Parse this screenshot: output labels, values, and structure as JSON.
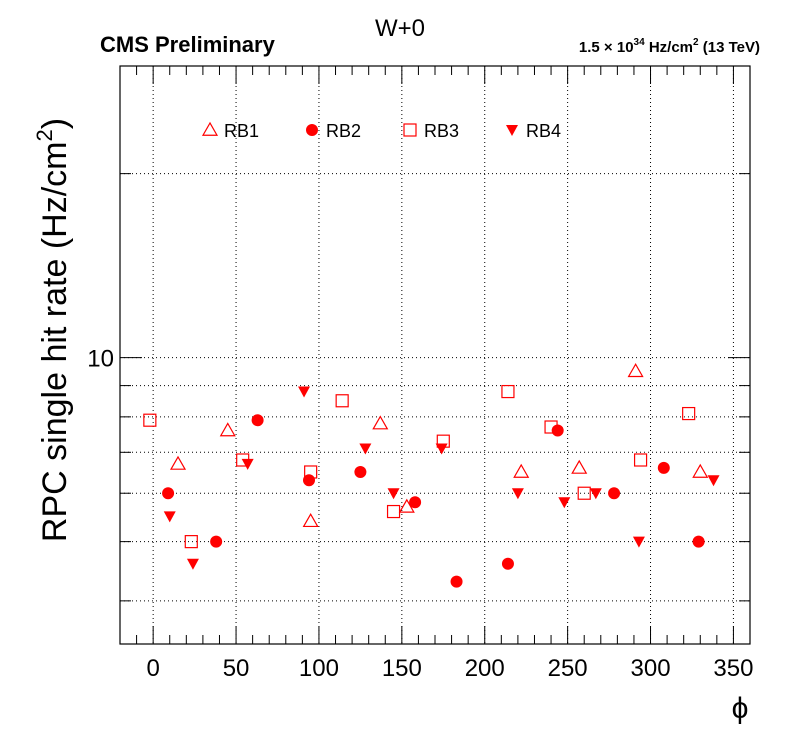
{
  "header": {
    "title": "W+0",
    "experiment": "CMS Preliminary",
    "lumi_main": "1.5 × 10",
    "lumi_exp": "34",
    "lumi_unit": " Hz/cm",
    "lumi_unit_exp": "2",
    "lumi_energy": " (13 TeV)"
  },
  "colors": {
    "marker": "#ff0000",
    "axis": "#000000",
    "grid": "#000000"
  },
  "chart_data": {
    "type": "scatter",
    "xlabel": "ϕ",
    "ylabel": "RPC single hit rate (Hz/cm",
    "ylabel_exp": "2",
    "ylabel_close": ")",
    "xlim": [
      -20,
      360
    ],
    "ylim": [
      3.4,
      30
    ],
    "yscale": "log",
    "grid": true,
    "legend_position": "top",
    "x_ticks": [
      0,
      50,
      100,
      150,
      200,
      250,
      300,
      350
    ],
    "x_tick_labels": [
      "0",
      "50",
      "100",
      "150",
      "200",
      "250",
      "300",
      "350"
    ],
    "y_ticks": [
      10
    ],
    "y_tick_labels": [
      "10"
    ],
    "series": [
      {
        "name": "RB1",
        "marker": "triangle-up-open",
        "x": [
          15,
          45,
          95,
          137,
          153,
          222,
          257,
          291,
          330
        ],
        "y": [
          6.7,
          7.6,
          5.4,
          7.8,
          5.7,
          6.5,
          6.6,
          9.5,
          6.5
        ]
      },
      {
        "name": "RB2",
        "marker": "circle-filled",
        "x": [
          9,
          38,
          94,
          63,
          125,
          158,
          183,
          214,
          244,
          278,
          308,
          329
        ],
        "y": [
          6.0,
          5.0,
          6.3,
          7.9,
          6.5,
          5.8,
          4.3,
          4.6,
          7.6,
          6.0,
          6.6,
          5.0
        ]
      },
      {
        "name": "RB3",
        "marker": "square-open",
        "x": [
          -2,
          23,
          54,
          95,
          114,
          145,
          175,
          214,
          240,
          260,
          294,
          323
        ],
        "y": [
          7.9,
          5.0,
          6.8,
          6.5,
          8.5,
          5.6,
          7.3,
          8.8,
          7.7,
          6.0,
          6.8,
          8.1
        ]
      },
      {
        "name": "RB4",
        "marker": "triangle-down-filled",
        "x": [
          10,
          24,
          57,
          91,
          128,
          145,
          174,
          220,
          248,
          267,
          293,
          338
        ],
        "y": [
          5.5,
          4.6,
          6.7,
          8.8,
          7.1,
          6.0,
          7.1,
          6.0,
          5.8,
          6.0,
          5.0,
          6.3
        ]
      }
    ]
  }
}
